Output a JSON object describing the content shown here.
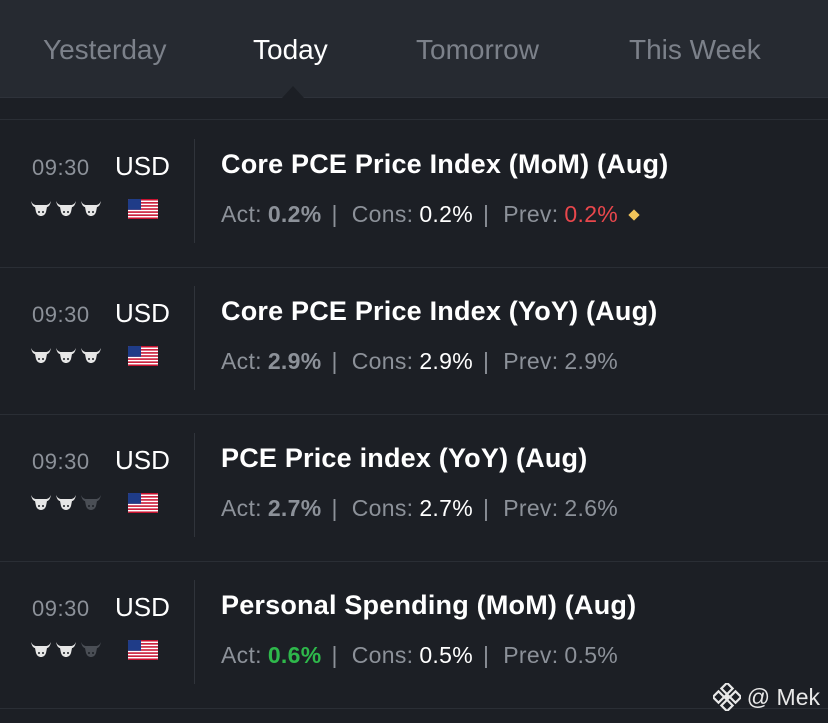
{
  "tabs": [
    {
      "label": "Yesterday",
      "active": false
    },
    {
      "label": "Today",
      "active": true
    },
    {
      "label": "Tomorrow",
      "active": false
    },
    {
      "label": "This Week",
      "active": false
    }
  ],
  "events": [
    {
      "time": "09:30",
      "currency": "USD",
      "importance": 3,
      "flag": "us-flag-icon",
      "title": "Core PCE Price Index (MoM) (Aug)",
      "act_label": "Act:",
      "act": "0.2%",
      "cons_label": "Cons:",
      "cons": "0.2%",
      "prev_label": "Prev:",
      "prev": "0.2%",
      "prev_color": "#e9474c",
      "prev_revised": true
    },
    {
      "time": "09:30",
      "currency": "USD",
      "importance": 3,
      "flag": "us-flag-icon",
      "title": "Core PCE Price Index (YoY) (Aug)",
      "act_label": "Act:",
      "act": "2.9%",
      "cons_label": "Cons:",
      "cons": "2.9%",
      "prev_label": "Prev:",
      "prev": "2.9%"
    },
    {
      "time": "09:30",
      "currency": "USD",
      "importance": 2,
      "flag": "us-flag-icon",
      "title": "PCE Price index (YoY) (Aug)",
      "act_label": "Act:",
      "act": "2.7%",
      "cons_label": "Cons:",
      "cons": "2.7%",
      "prev_label": "Prev:",
      "prev": "2.6%"
    },
    {
      "time": "09:30",
      "currency": "USD",
      "importance": 2,
      "flag": "us-flag-icon",
      "title": "Personal Spending (MoM) (Aug)",
      "act_label": "Act:",
      "act": "0.6%",
      "act_color": "#2eb84b",
      "cons_label": "Cons:",
      "cons": "0.5%",
      "prev_label": "Prev:",
      "prev": "0.5%"
    }
  ],
  "separator": "|",
  "watermark": {
    "text": "@ Mek",
    "icon": "binance-logo-icon"
  },
  "colors": {
    "background": "#1c1f25",
    "tabbar": "#262a31",
    "muted": "#8c9199",
    "negative": "#e9474c",
    "positive": "#2eb84b",
    "revised_marker": "#f0c35a"
  }
}
